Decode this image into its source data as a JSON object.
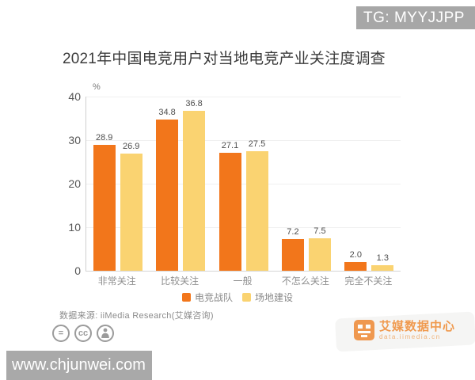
{
  "overlay": {
    "tg_label": "TG: MYYJJPP"
  },
  "title": "2021年中国电竞用户对当地电竞产业关注度调查",
  "chart_data": {
    "type": "bar",
    "title": "2021年中国电竞用户对当地电竞产业关注度调查",
    "unit": "%",
    "categories": [
      "非常关注",
      "比较关注",
      "一般",
      "不怎么关注",
      "完全不关注"
    ],
    "series": [
      {
        "name": "电竞战队",
        "color": "#F2761B",
        "values": [
          28.9,
          34.8,
          27.1,
          7.2,
          2.0
        ]
      },
      {
        "name": "场地建设",
        "color": "#FAD371",
        "values": [
          26.9,
          36.8,
          27.5,
          7.5,
          1.3
        ]
      }
    ],
    "ylim": [
      0,
      40
    ],
    "y_ticks": [
      0,
      10,
      20,
      30,
      40
    ],
    "grid": "horizontal",
    "legend_position": "bottom"
  },
  "source": {
    "label": "数据来源: iiMedia Research(艾媒咨询)"
  },
  "license": {
    "icons": [
      "equals-circle-icon",
      "cc-circle-icon",
      "person-circle-icon"
    ],
    "equals_glyph": "=",
    "cc_glyph": "cc"
  },
  "branding": {
    "name": "艾媒数据中心",
    "domain": "data.iimedia.cn"
  },
  "watermark": {
    "site": "www.chjunwei.com"
  }
}
